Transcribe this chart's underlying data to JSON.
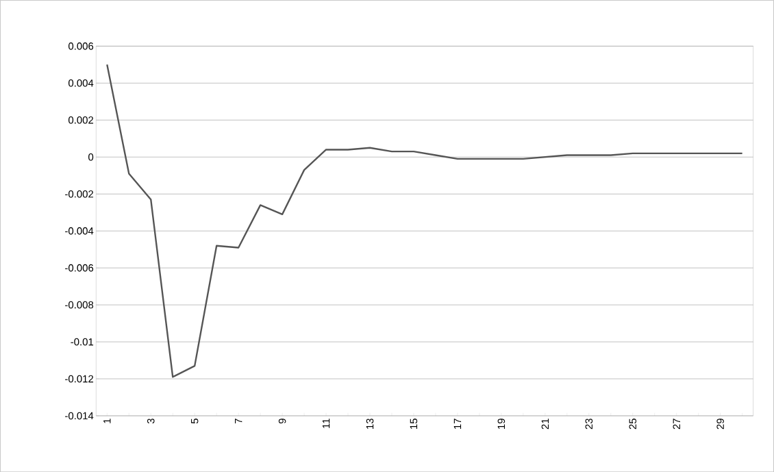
{
  "chart_data": {
    "type": "line",
    "categories": [
      "1",
      null,
      "3",
      null,
      "5",
      null,
      "7",
      null,
      "9",
      null,
      "11",
      null,
      "13",
      null,
      "15",
      null,
      "17",
      null,
      "19",
      null,
      "21",
      null,
      "23",
      null,
      "25",
      null,
      "27",
      null,
      "29",
      null
    ],
    "values": [
      0.005,
      -0.0009,
      -0.0023,
      -0.0119,
      -0.0113,
      -0.0048,
      -0.0049,
      -0.0026,
      -0.0031,
      -0.0007,
      0.0004,
      0.0004,
      0.0005,
      0.0003,
      0.0003,
      0.0001,
      -0.0001,
      -0.0001,
      -0.0001,
      -0.0001,
      0.0,
      0.0001,
      0.0001,
      0.0001,
      0.0002,
      0.0002,
      0.0002,
      0.0002,
      0.0002,
      0.0002
    ],
    "color": "#555555",
    "ylim": [
      -0.014,
      0.006
    ],
    "yticks": [
      -0.014,
      -0.012,
      -0.01,
      -0.008,
      -0.006,
      -0.004,
      -0.002,
      0,
      0.002,
      0.004,
      0.006
    ],
    "grid": "y",
    "marker": "none",
    "line_style": "solid"
  }
}
